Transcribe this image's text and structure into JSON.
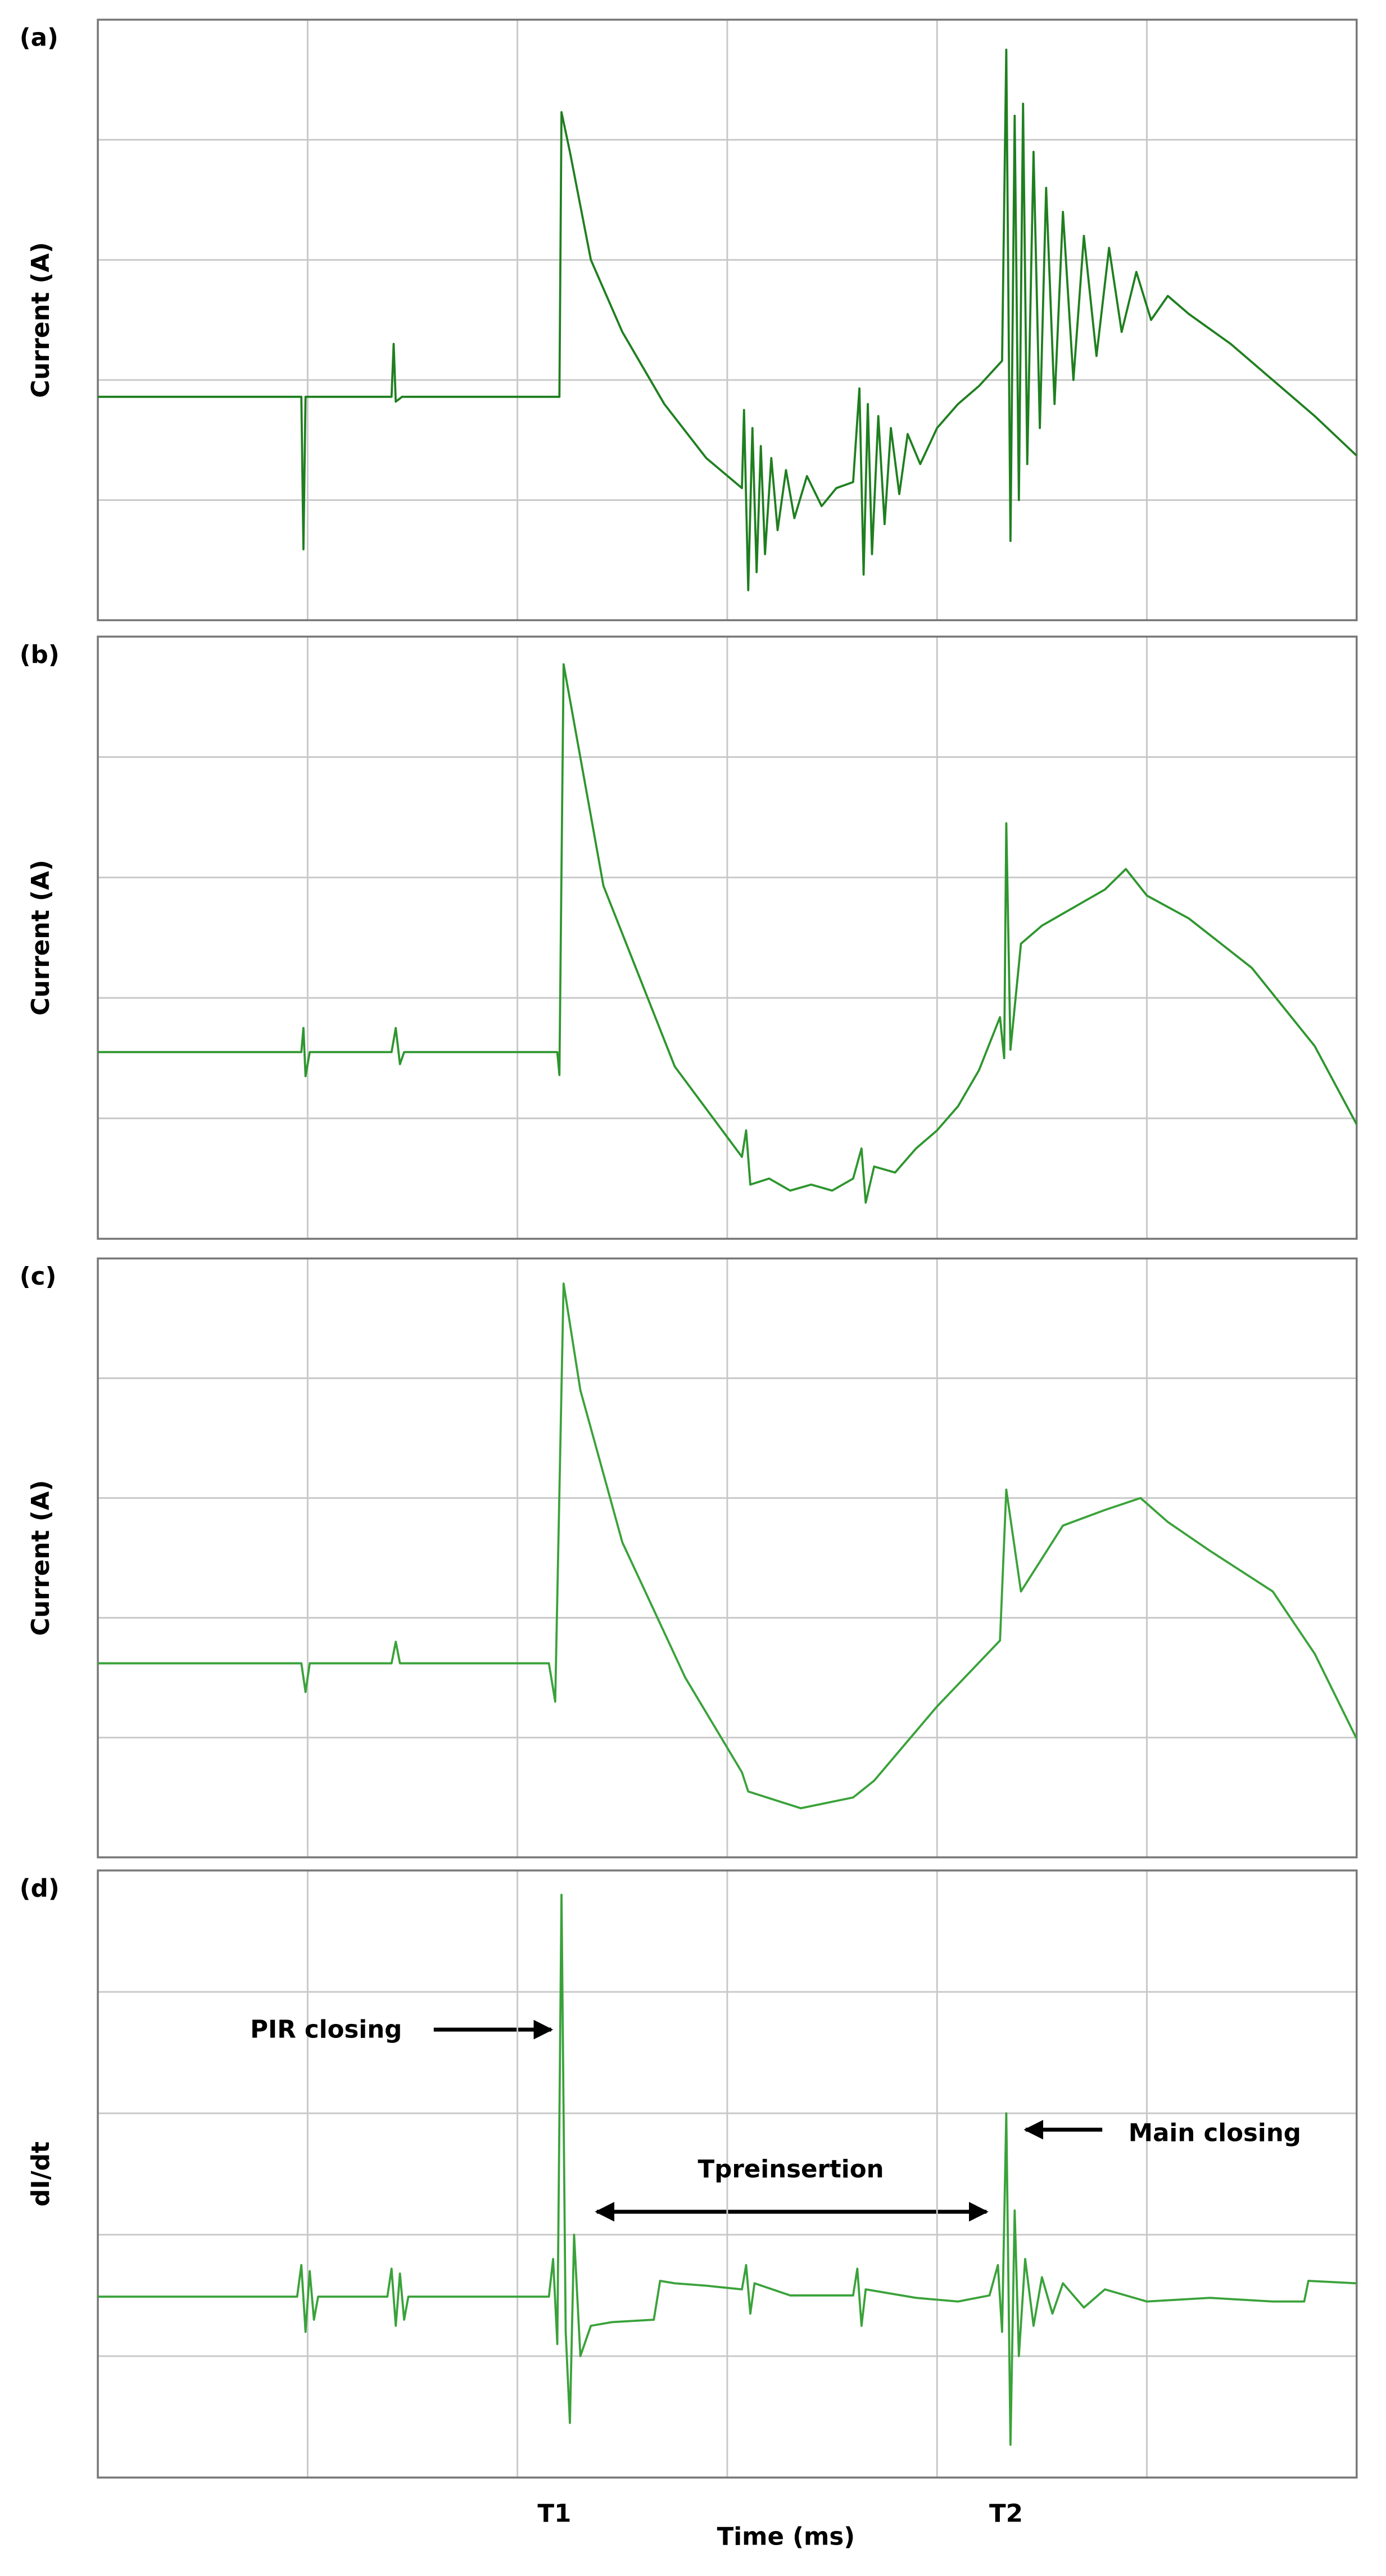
{
  "chart_data": [
    {
      "type": "line",
      "panel_label": "(a)",
      "ylabel": "Current (A)",
      "color": "#1f7f1f",
      "xlim": [
        0,
        6
      ],
      "xticks": [
        0,
        1,
        2,
        3,
        4,
        5,
        6
      ],
      "ylim": [
        0,
        5
      ],
      "yticks": [
        0,
        1,
        2,
        3,
        4,
        5
      ],
      "grid": true,
      "x": [
        0,
        0.97,
        0.98,
        0.99,
        1.4,
        1.41,
        1.42,
        1.45,
        2.2,
        2.21,
        2.25,
        2.35,
        2.5,
        2.7,
        2.9,
        3.07,
        3.08,
        3.1,
        3.12,
        3.14,
        3.16,
        3.18,
        3.21,
        3.24,
        3.28,
        3.32,
        3.38,
        3.45,
        3.52,
        3.6,
        3.63,
        3.65,
        3.67,
        3.69,
        3.72,
        3.75,
        3.78,
        3.82,
        3.86,
        3.92,
        4.0,
        4.1,
        4.2,
        4.31,
        4.33,
        4.35,
        4.37,
        4.39,
        4.41,
        4.43,
        4.46,
        4.49,
        4.52,
        4.56,
        4.6,
        4.65,
        4.7,
        4.76,
        4.82,
        4.88,
        4.95,
        5.02,
        5.1,
        5.2,
        5.4,
        5.6,
        5.8,
        6.0
      ],
      "values": [
        1.86,
        1.86,
        0.59,
        1.86,
        1.86,
        2.3,
        1.82,
        1.86,
        1.86,
        4.23,
        3.9,
        3.0,
        2.4,
        1.8,
        1.35,
        1.1,
        1.75,
        0.25,
        1.6,
        0.4,
        1.45,
        0.55,
        1.35,
        0.75,
        1.25,
        0.85,
        1.2,
        0.95,
        1.1,
        1.15,
        1.93,
        0.38,
        1.8,
        0.55,
        1.7,
        0.8,
        1.6,
        1.05,
        1.55,
        1.3,
        1.6,
        1.8,
        1.95,
        2.16,
        4.75,
        0.66,
        4.2,
        1.0,
        4.3,
        1.3,
        3.9,
        1.6,
        3.6,
        1.8,
        3.4,
        2.0,
        3.2,
        2.2,
        3.1,
        2.4,
        2.9,
        2.5,
        2.7,
        2.55,
        2.3,
        2.0,
        1.7,
        1.37
      ]
    },
    {
      "type": "line",
      "panel_label": "(b)",
      "ylabel": "Current (A)",
      "color": "#2e962e",
      "xlim": [
        0,
        6
      ],
      "xticks": [
        0,
        1,
        2,
        3,
        4,
        5,
        6
      ],
      "ylim": [
        0,
        5
      ],
      "yticks": [
        0,
        1,
        2,
        3,
        4,
        5
      ],
      "grid": true,
      "x": [
        0,
        0.97,
        0.98,
        0.99,
        1.01,
        1.4,
        1.42,
        1.44,
        1.46,
        2.19,
        2.2,
        2.22,
        2.41,
        2.75,
        3.07,
        3.09,
        3.11,
        3.2,
        3.3,
        3.4,
        3.5,
        3.6,
        3.64,
        3.66,
        3.7,
        3.8,
        3.9,
        4.0,
        4.1,
        4.2,
        4.3,
        4.32,
        4.33,
        4.35,
        4.4,
        4.5,
        4.6,
        4.7,
        4.8,
        4.9,
        5.0,
        5.2,
        5.5,
        5.8,
        6.0
      ],
      "values": [
        1.55,
        1.55,
        1.75,
        1.35,
        1.55,
        1.55,
        1.75,
        1.45,
        1.55,
        1.55,
        1.36,
        4.77,
        2.93,
        1.43,
        0.68,
        0.9,
        0.45,
        0.5,
        0.4,
        0.45,
        0.4,
        0.5,
        0.75,
        0.3,
        0.6,
        0.55,
        0.75,
        0.9,
        1.1,
        1.4,
        1.84,
        1.5,
        3.45,
        1.57,
        2.45,
        2.6,
        2.7,
        2.8,
        2.9,
        3.07,
        2.85,
        2.66,
        2.25,
        1.6,
        0.95
      ]
    },
    {
      "type": "line",
      "panel_label": "(c)",
      "ylabel": "Current (A)",
      "color": "#3aa23a",
      "xlim": [
        0,
        6
      ],
      "xticks": [
        0,
        1,
        2,
        3,
        4,
        5,
        6
      ],
      "ylim": [
        0,
        5
      ],
      "yticks": [
        0,
        1,
        2,
        3,
        4,
        5
      ],
      "grid": true,
      "x": [
        0,
        0.97,
        0.99,
        1.01,
        1.4,
        1.42,
        1.44,
        2.15,
        2.18,
        2.22,
        2.3,
        2.5,
        2.8,
        3.07,
        3.1,
        3.35,
        3.6,
        3.7,
        4.0,
        4.3,
        4.33,
        4.4,
        4.6,
        4.8,
        4.97,
        5.1,
        5.3,
        5.6,
        5.8,
        6.0
      ],
      "values": [
        1.62,
        1.62,
        1.38,
        1.62,
        1.62,
        1.8,
        1.62,
        1.62,
        1.3,
        4.79,
        3.9,
        2.63,
        1.5,
        0.71,
        0.55,
        0.41,
        0.5,
        0.64,
        1.26,
        1.81,
        3.07,
        2.22,
        2.77,
        2.9,
        3.0,
        2.8,
        2.56,
        2.22,
        1.7,
        0.99
      ]
    },
    {
      "type": "line",
      "panel_label": "(d)",
      "ylabel": "dI/dt",
      "xlabel": "Time (ms)",
      "color": "#3aa23a",
      "xlim": [
        0,
        6
      ],
      "xticks": [
        0,
        1,
        2,
        3,
        4,
        5,
        6
      ],
      "ylim": [
        0,
        5
      ],
      "yticks": [
        0,
        1,
        2,
        3,
        4,
        5
      ],
      "grid": true,
      "x": [
        0,
        0.95,
        0.97,
        0.99,
        1.01,
        1.03,
        1.05,
        1.38,
        1.4,
        1.42,
        1.44,
        1.46,
        1.48,
        2.15,
        2.17,
        2.19,
        2.21,
        2.23,
        2.25,
        2.27,
        2.3,
        2.35,
        2.45,
        2.65,
        2.68,
        2.75,
        2.9,
        3.07,
        3.09,
        3.11,
        3.13,
        3.3,
        3.6,
        3.62,
        3.64,
        3.66,
        3.9,
        4.1,
        4.25,
        4.29,
        4.31,
        4.33,
        4.35,
        4.37,
        4.39,
        4.42,
        4.46,
        4.5,
        4.55,
        4.6,
        4.7,
        4.8,
        5.0,
        5.3,
        5.6,
        5.75,
        5.77,
        6.0
      ],
      "values": [
        1.49,
        1.49,
        1.75,
        1.2,
        1.7,
        1.3,
        1.49,
        1.49,
        1.72,
        1.25,
        1.68,
        1.3,
        1.49,
        1.49,
        1.8,
        1.1,
        4.8,
        1.2,
        0.45,
        2.0,
        1.0,
        1.25,
        1.28,
        1.3,
        1.62,
        1.6,
        1.58,
        1.55,
        1.75,
        1.35,
        1.6,
        1.5,
        1.5,
        1.72,
        1.25,
        1.55,
        1.48,
        1.45,
        1.5,
        1.75,
        1.2,
        3.0,
        0.27,
        2.2,
        1.0,
        1.8,
        1.25,
        1.65,
        1.35,
        1.6,
        1.4,
        1.55,
        1.45,
        1.48,
        1.45,
        1.45,
        1.62,
        1.6
      ],
      "annotations": [
        "PIR closing",
        "Tpreinsertion",
        "Main closing",
        "T1",
        "T2"
      ]
    }
  ]
}
